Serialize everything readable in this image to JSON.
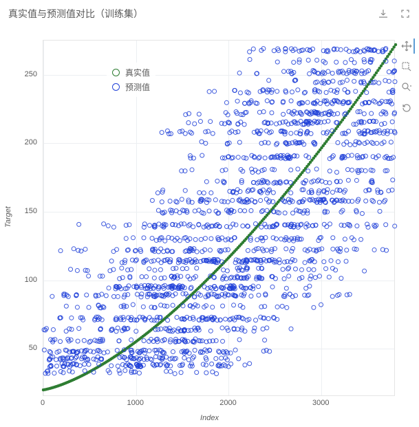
{
  "title": "真实值与预测值对比（训练集）",
  "legend": {
    "series1": {
      "label": "真实值",
      "color": "#2e7d32"
    },
    "series2": {
      "label": "预测值",
      "color": "#1e3fd8"
    }
  },
  "chart": {
    "type": "scatter",
    "xlabel": "Index",
    "ylabel": "Target",
    "xlim": [
      0,
      3800
    ],
    "ylim": [
      15,
      275
    ],
    "xtick_step": 1000,
    "xticks": [
      0,
      1000,
      2000,
      3000
    ],
    "yticks": [
      50,
      100,
      150,
      200,
      250
    ],
    "grid_color": "#eceff2",
    "background_color": "#ffffff",
    "border_color": "#e5e5e5",
    "axis_font_size": 11,
    "tick_font_size": 11,
    "marker_radius_actual": 2.0,
    "marker_radius_pred": 3.0,
    "actual": {
      "color_stroke": "#2e7d32",
      "color_fill": "#2e7d32",
      "n_points": 220,
      "curve": "monotone_quadratic",
      "y_start": 20,
      "y_end": 272
    },
    "predicted": {
      "color_stroke": "#1e3fd8",
      "color_fill": "rgba(30,63,216,0.15)",
      "stripe_values": [
        33,
        38,
        43,
        48,
        56,
        64,
        72,
        81,
        89,
        95,
        102,
        108,
        114,
        122,
        130,
        140,
        150,
        158,
        165,
        172,
        180,
        190,
        200,
        208,
        215,
        222,
        230,
        238,
        245,
        252,
        260,
        268
      ],
      "density_per_stripe": 70,
      "spread_index": 1800
    }
  }
}
